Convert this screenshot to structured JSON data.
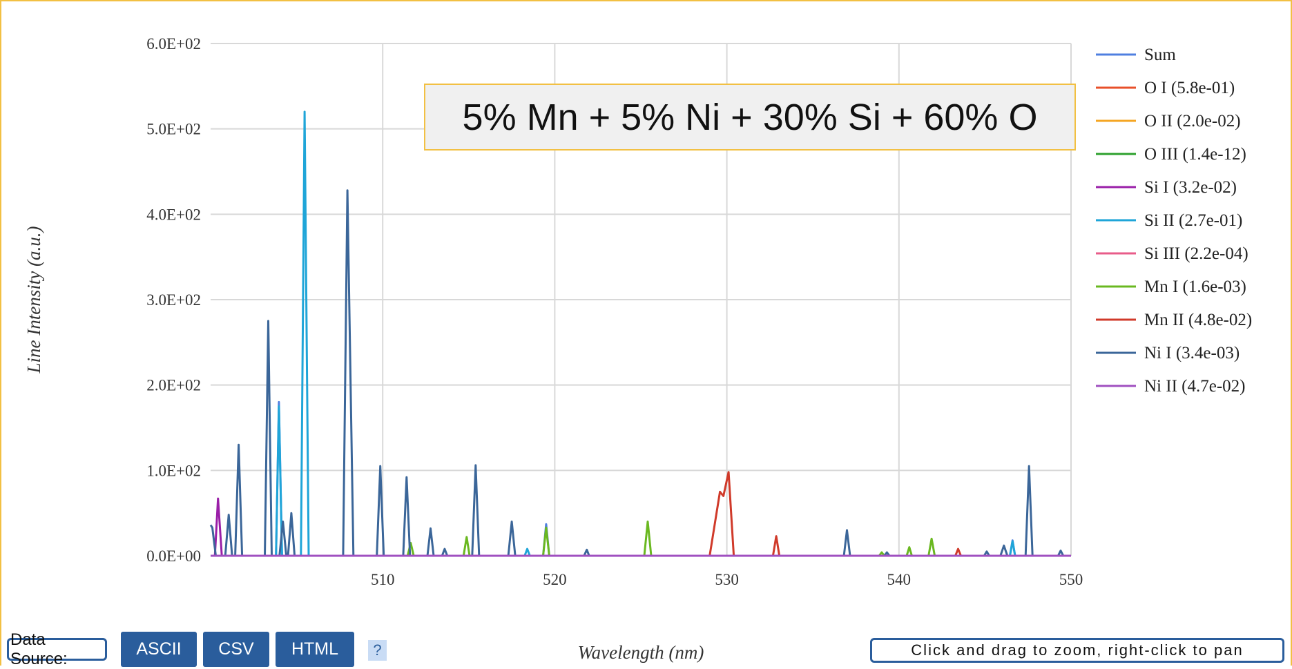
{
  "chart_data": {
    "type": "line",
    "annotation": "5% Mn + 5% Ni + 30% Si + 60% O",
    "ylabel": "Line Intensity (a.u.)",
    "xlabel": "Wavelength (nm)",
    "xlim": [
      500,
      550
    ],
    "xticks": [
      510,
      520,
      530,
      540,
      550
    ],
    "ylim": [
      0,
      600
    ],
    "yticks": [
      {
        "value": 0,
        "label": "0.0E+00"
      },
      {
        "value": 100,
        "label": "1.0E+02"
      },
      {
        "value": 200,
        "label": "2.0E+02"
      },
      {
        "value": 300,
        "label": "3.0E+02"
      },
      {
        "value": 400,
        "label": "4.0E+02"
      },
      {
        "value": 500,
        "label": "5.0E+02"
      },
      {
        "value": 600,
        "label": "6.0E+02"
      }
    ],
    "grid": true,
    "legend": "right",
    "series": [
      {
        "name": "Sum",
        "color": "#4f7fe0",
        "x": [
          500,
          503.8,
          503.97,
          504.15,
          519.32,
          519.5,
          519.68,
          546.45,
          546.6,
          546.75,
          550
        ],
        "values": [
          0,
          0,
          180,
          0,
          0,
          37,
          0,
          0,
          18,
          0,
          0
        ]
      },
      {
        "name": "O I (5.8e-01)",
        "color": "#e8502a",
        "x": [
          500,
          550
        ],
        "values": [
          0,
          0
        ]
      },
      {
        "name": "O II (2.0e-02)",
        "color": "#f5a623",
        "x": [
          500,
          550
        ],
        "values": [
          0,
          0
        ]
      },
      {
        "name": "O III (1.4e-12)",
        "color": "#2ca02c",
        "x": [
          500,
          550
        ],
        "values": [
          0,
          0
        ]
      },
      {
        "name": "Si I (3.2e-02)",
        "color": "#9a1fa8",
        "x": [
          500,
          500.25,
          500.43,
          500.65,
          550
        ],
        "values": [
          0,
          0,
          67,
          0,
          0
        ]
      },
      {
        "name": "Si II (2.7e-01)",
        "color": "#1fa5d8",
        "x": [
          500,
          503.8,
          503.97,
          504.15,
          505.25,
          505.46,
          505.7,
          518.25,
          518.4,
          518.55,
          546.45,
          546.6,
          546.75,
          550
        ],
        "values": [
          0,
          0,
          175,
          0,
          0,
          520,
          0,
          0,
          8,
          0,
          0,
          17,
          0,
          0
        ]
      },
      {
        "name": "Si III (2.2e-04)",
        "color": "#e85c8a",
        "x": [
          500,
          550
        ],
        "values": [
          0,
          0
        ]
      },
      {
        "name": "Mn I (1.6e-03)",
        "color": "#6ab820",
        "x": [
          500,
          511.45,
          511.63,
          511.8,
          514.7,
          514.88,
          515.05,
          519.32,
          519.5,
          519.68,
          525.2,
          525.4,
          525.6,
          538.85,
          539.0,
          539.15,
          540.45,
          540.6,
          540.75,
          541.72,
          541.9,
          542.08,
          550
        ],
        "values": [
          0,
          0,
          15,
          0,
          0,
          22,
          0,
          0,
          33,
          0,
          0,
          40,
          0,
          0,
          4,
          0,
          0,
          10,
          0,
          0,
          20,
          0,
          0
        ]
      },
      {
        "name": "Mn II (4.8e-02)",
        "color": "#d03a2a",
        "x": [
          500,
          529.0,
          529.6,
          529.8,
          530.1,
          530.4,
          532.68,
          532.87,
          533.05,
          543.28,
          543.44,
          543.6,
          550
        ],
        "values": [
          0,
          0,
          75,
          70,
          98,
          0,
          0,
          23,
          0,
          0,
          8,
          0,
          0
        ]
      },
      {
        "name": "Ni I (3.4e-03)",
        "color": "#3b6699",
        "x": [
          500,
          500.1,
          500.3,
          500.85,
          501.05,
          501.25,
          501.43,
          501.63,
          501.83,
          503.15,
          503.35,
          503.55,
          504.0,
          504.2,
          504.4,
          504.5,
          504.69,
          504.88,
          507.7,
          507.95,
          508.3,
          509.66,
          509.86,
          510.06,
          511.19,
          511.39,
          511.59,
          512.6,
          512.78,
          512.96,
          513.45,
          513.6,
          513.75,
          515.2,
          515.4,
          515.6,
          517.3,
          517.5,
          517.7,
          521.7,
          521.86,
          522.0,
          536.8,
          536.98,
          537.16,
          539.15,
          539.3,
          539.45,
          544.95,
          545.1,
          545.25,
          545.9,
          546.1,
          546.3,
          547.36,
          547.56,
          547.76,
          549.25,
          549.4,
          549.55,
          550
        ],
        "values": [
          36,
          33,
          0,
          0,
          48,
          0,
          0,
          130,
          0,
          0,
          275,
          0,
          0,
          40,
          0,
          0,
          50,
          0,
          0,
          428,
          0,
          0,
          105,
          0,
          0,
          92,
          0,
          0,
          32,
          0,
          0,
          8,
          0,
          0,
          106,
          0,
          0,
          40,
          0,
          0,
          7,
          0,
          0,
          30,
          0,
          0,
          4,
          0,
          0,
          5,
          0,
          0,
          12,
          0,
          0,
          105,
          0,
          0,
          6,
          0,
          0
        ]
      },
      {
        "name": "Ni II (4.7e-02)",
        "color": "#a050c0",
        "x": [
          500,
          550
        ],
        "values": [
          0,
          0
        ]
      }
    ]
  },
  "controls": {
    "data_source": "Data Source:",
    "buttons": [
      "ASCII",
      "CSV",
      "HTML"
    ],
    "help": "?",
    "hint": "Click and drag to zoom, right-click to pan"
  }
}
